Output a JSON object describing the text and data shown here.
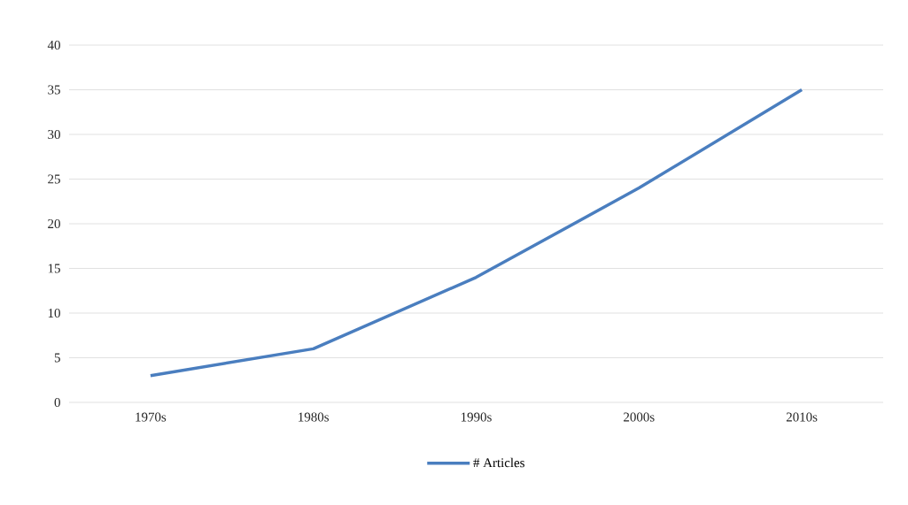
{
  "chart_data": {
    "type": "line",
    "categories": [
      "1970s",
      "1980s",
      "1990s",
      "2000s",
      "2010s"
    ],
    "series": [
      {
        "name": "# Articles",
        "color": "#4a7ebf",
        "values": [
          3,
          6,
          14,
          24,
          35
        ]
      }
    ],
    "ylim": [
      0,
      40
    ],
    "yticks": [
      0,
      5,
      10,
      15,
      20,
      25,
      30,
      35,
      40
    ],
    "grid": "y",
    "legend": "bottom",
    "marker": "none",
    "line_style": "solid"
  }
}
